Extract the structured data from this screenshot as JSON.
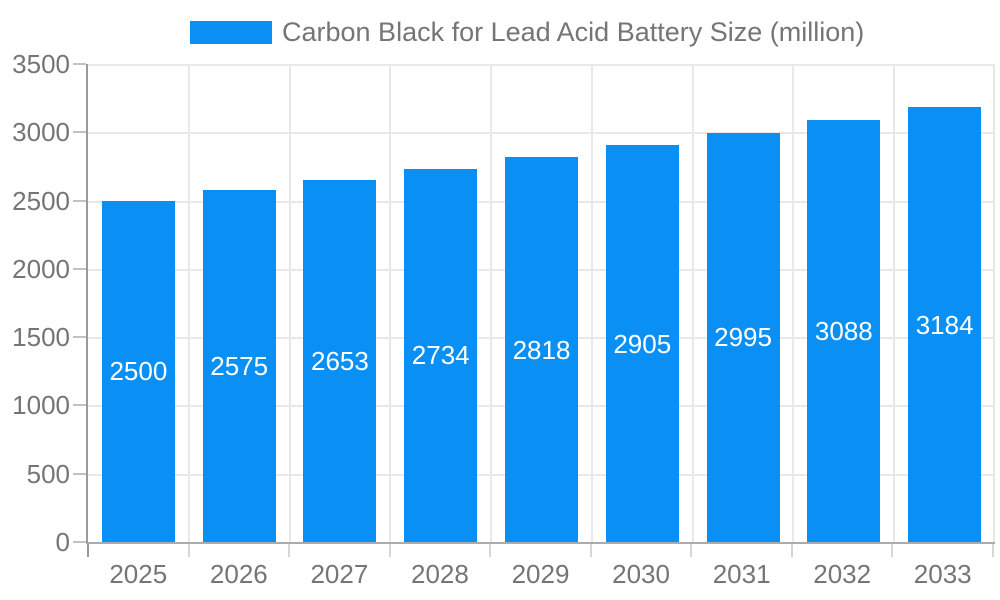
{
  "chart_data": {
    "type": "bar",
    "title": "Carbon Black for Lead Acid Battery Size (million)",
    "categories": [
      "2025",
      "2026",
      "2027",
      "2028",
      "2029",
      "2030",
      "2031",
      "2032",
      "2033"
    ],
    "series": [
      {
        "name": "Carbon Black for Lead Acid Battery Size (million)",
        "values": [
          2500,
          2575,
          2653,
          2734,
          2818,
          2905,
          2995,
          3088,
          3184
        ]
      }
    ],
    "xlabel": "",
    "ylabel": "",
    "ylim": [
      0,
      3500
    ],
    "yticks": [
      0,
      500,
      1000,
      1500,
      2000,
      2500,
      3000,
      3500
    ],
    "grid": true,
    "legend_position": "top",
    "colors": {
      "bar": "#0a90f5",
      "bar_label_text": "#ffffff",
      "axis_text": "#757575",
      "gridline": "#e8e8e8",
      "y_axis_line": "#9a9a9a",
      "baseline": "#ababab",
      "y_tick": "#c2c2c2",
      "x_tick": "#d6d6d6"
    }
  }
}
